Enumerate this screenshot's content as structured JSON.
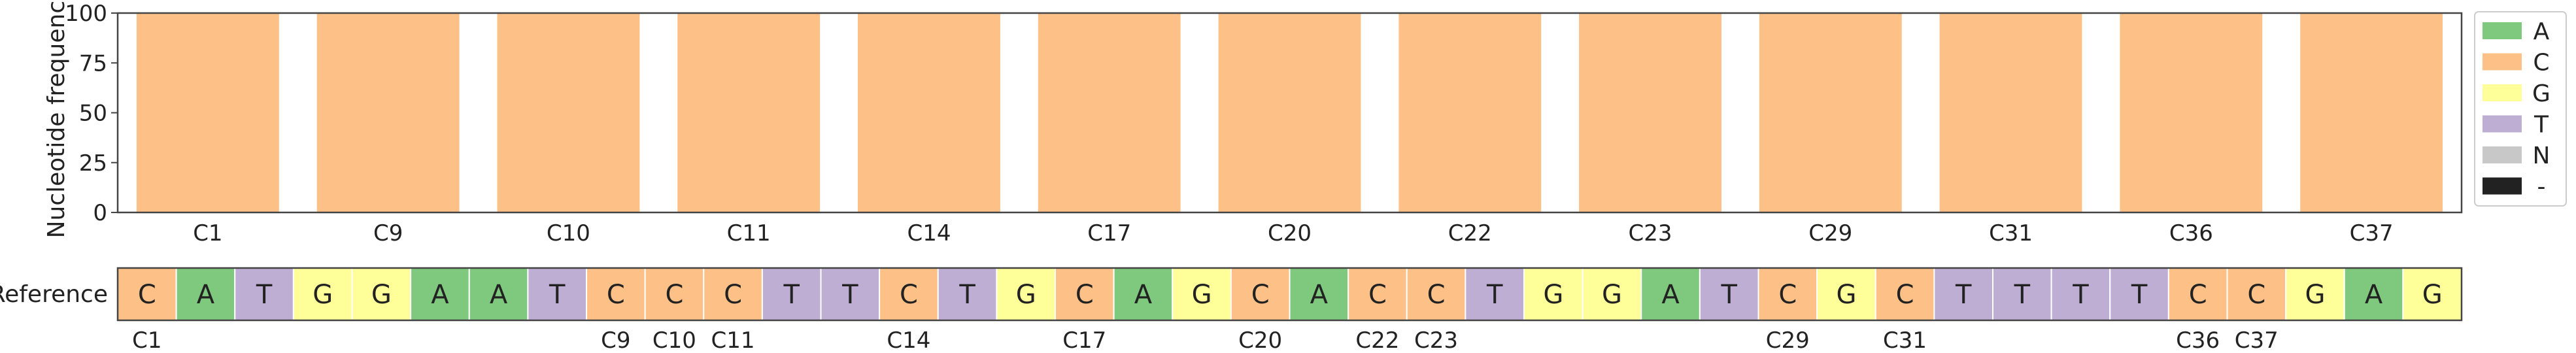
{
  "chart_data": {
    "type": "bar",
    "ylabel": "Nucleotide frequency",
    "ylim": [
      0,
      100
    ],
    "yticks": [
      0,
      25,
      50,
      75,
      100
    ],
    "categories": [
      "C1",
      "C9",
      "C10",
      "C11",
      "C14",
      "C17",
      "C20",
      "C22",
      "C23",
      "C29",
      "C31",
      "C36",
      "C37"
    ],
    "series": [
      {
        "name": "A",
        "color": "#7fc97f",
        "values": [
          0,
          0,
          0,
          0,
          0,
          0,
          0,
          0,
          0,
          0,
          0,
          0,
          0
        ]
      },
      {
        "name": "C",
        "color": "#fdc086",
        "values": [
          100,
          100,
          100,
          100,
          100,
          100,
          100,
          100,
          100,
          100,
          100,
          100,
          100
        ]
      },
      {
        "name": "G",
        "color": "#ffff99",
        "values": [
          0,
          0,
          0,
          0,
          0,
          0,
          0,
          0,
          0,
          0,
          0,
          0,
          0
        ]
      },
      {
        "name": "T",
        "color": "#beaed4",
        "values": [
          0,
          0,
          0,
          0,
          0,
          0,
          0,
          0,
          0,
          0,
          0,
          0,
          0
        ]
      },
      {
        "name": "N",
        "color": "#c8c8c8",
        "values": [
          0,
          0,
          0,
          0,
          0,
          0,
          0,
          0,
          0,
          0,
          0,
          0,
          0
        ]
      },
      {
        "name": "-",
        "color": "#222222",
        "values": [
          0,
          0,
          0,
          0,
          0,
          0,
          0,
          0,
          0,
          0,
          0,
          0,
          0
        ]
      }
    ],
    "legend_position": "right",
    "reference": {
      "label": "Reference",
      "sequence": [
        "C",
        "A",
        "T",
        "G",
        "G",
        "A",
        "A",
        "T",
        "C",
        "C",
        "C",
        "T",
        "T",
        "C",
        "T",
        "G",
        "C",
        "A",
        "G",
        "C",
        "A",
        "C",
        "C",
        "T",
        "G",
        "G",
        "A",
        "T",
        "C",
        "G",
        "C",
        "T",
        "T",
        "T",
        "T",
        "C",
        "C",
        "G",
        "A",
        "G"
      ],
      "marked_positions": [
        {
          "label": "C1",
          "index": 0
        },
        {
          "label": "C9",
          "index": 8
        },
        {
          "label": "C10",
          "index": 9
        },
        {
          "label": "C11",
          "index": 10
        },
        {
          "label": "C14",
          "index": 13
        },
        {
          "label": "C17",
          "index": 16
        },
        {
          "label": "C20",
          "index": 19
        },
        {
          "label": "C22",
          "index": 21
        },
        {
          "label": "C23",
          "index": 22
        },
        {
          "label": "C29",
          "index": 28
        },
        {
          "label": "C31",
          "index": 30
        },
        {
          "label": "C36",
          "index": 35
        },
        {
          "label": "C37",
          "index": 36
        }
      ]
    }
  }
}
